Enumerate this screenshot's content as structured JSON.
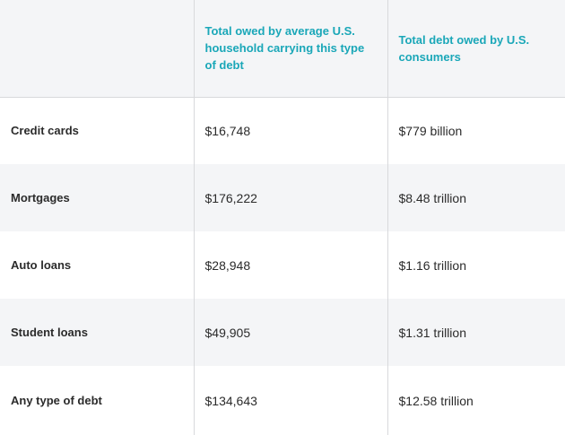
{
  "table": {
    "headers": [
      "",
      "Total owed by average U.S. household carrying this type of debt",
      "Total debt owed by U.S. consumers"
    ],
    "rows": [
      {
        "label": "Credit cards",
        "household": "$16,748",
        "total": "$779 billion"
      },
      {
        "label": "Mortgages",
        "household": "$176,222",
        "total": "$8.48 trillion"
      },
      {
        "label": "Auto loans",
        "household": "$28,948",
        "total": "$1.16 trillion"
      },
      {
        "label": "Student loans",
        "household": "$49,905",
        "total": "$1.31 trillion"
      },
      {
        "label": "Any type of debt",
        "household": "$134,643",
        "total": "$12.58 trillion"
      }
    ]
  },
  "colors": {
    "header_text": "#1aa7b8",
    "stripe": "#f4f5f7",
    "border": "#d8d9dc",
    "body_text": "#2b2b2b"
  }
}
